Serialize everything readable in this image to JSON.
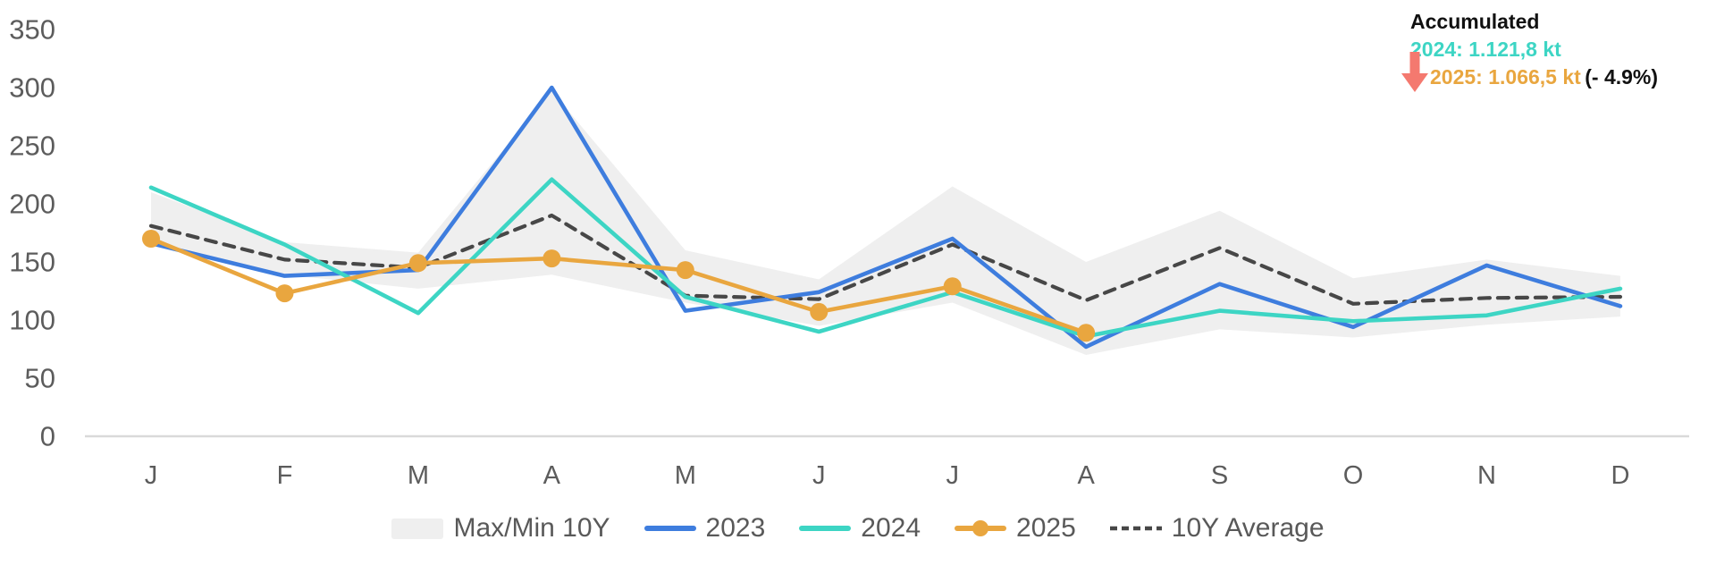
{
  "chart_data": {
    "type": "line",
    "title": "",
    "xlabel": "",
    "ylabel": "",
    "unit": "kt",
    "categories": [
      "J",
      "F",
      "M",
      "A",
      "M",
      "J",
      "J",
      "A",
      "S",
      "O",
      "N",
      "D"
    ],
    "y_ticks": [
      0,
      50,
      100,
      150,
      200,
      250,
      300,
      350
    ],
    "ylim": [
      0,
      350
    ],
    "grid": false,
    "legend_position": "bottom",
    "band": {
      "name": "Max/Min 10Y",
      "color": "#efefef",
      "max": [
        210,
        167,
        158,
        297,
        160,
        135,
        215,
        150,
        194,
        136,
        152,
        138
      ],
      "min": [
        165,
        139,
        127,
        139,
        115,
        95,
        115,
        70,
        92,
        85,
        96,
        103
      ]
    },
    "series": [
      {
        "name": "10Y Average",
        "color": "#474747",
        "dash": "12 9",
        "markers": false,
        "values": [
          181,
          152,
          145,
          190,
          121,
          118,
          165,
          117,
          162,
          114,
          119,
          120
        ]
      },
      {
        "name": "2023",
        "color": "#3e7dde",
        "dash": null,
        "markers": false,
        "values": [
          166,
          138,
          143,
          300,
          108,
          124,
          170,
          77,
          131,
          94,
          147,
          112
        ]
      },
      {
        "name": "2024",
        "color": "#3dd5c4",
        "dash": null,
        "markers": false,
        "values": [
          214,
          165,
          106,
          221,
          120,
          90,
          124,
          86,
          108,
          99,
          104,
          127
        ]
      },
      {
        "name": "2025",
        "color": "#e9a63f",
        "dash": null,
        "markers": true,
        "values": [
          170,
          123,
          149,
          153,
          143,
          107,
          129,
          89,
          null,
          null,
          null,
          null
        ]
      }
    ],
    "axis_line_color": "#d9d9d9",
    "tick_label_color": "#5c5c5c"
  },
  "annotation": {
    "title": "Accumulated",
    "line_2024": "2024: 1.121,8 kt",
    "line_2025": "2025: 1.066,5 kt",
    "delta": "(- 4.9%)",
    "color_2024": "#3dd5c4",
    "color_2025": "#e9a63f",
    "arrow_color": "#f4796f"
  },
  "legend": {
    "items": [
      {
        "label": "Max/Min 10Y",
        "type": "band",
        "color": "#efefef"
      },
      {
        "label": "2023",
        "type": "line",
        "color": "#3e7dde"
      },
      {
        "label": "2024",
        "type": "line",
        "color": "#3dd5c4"
      },
      {
        "label": "2025",
        "type": "line-marker",
        "color": "#e9a63f"
      },
      {
        "label": "10Y Average",
        "type": "dashed",
        "color": "#474747"
      }
    ]
  }
}
